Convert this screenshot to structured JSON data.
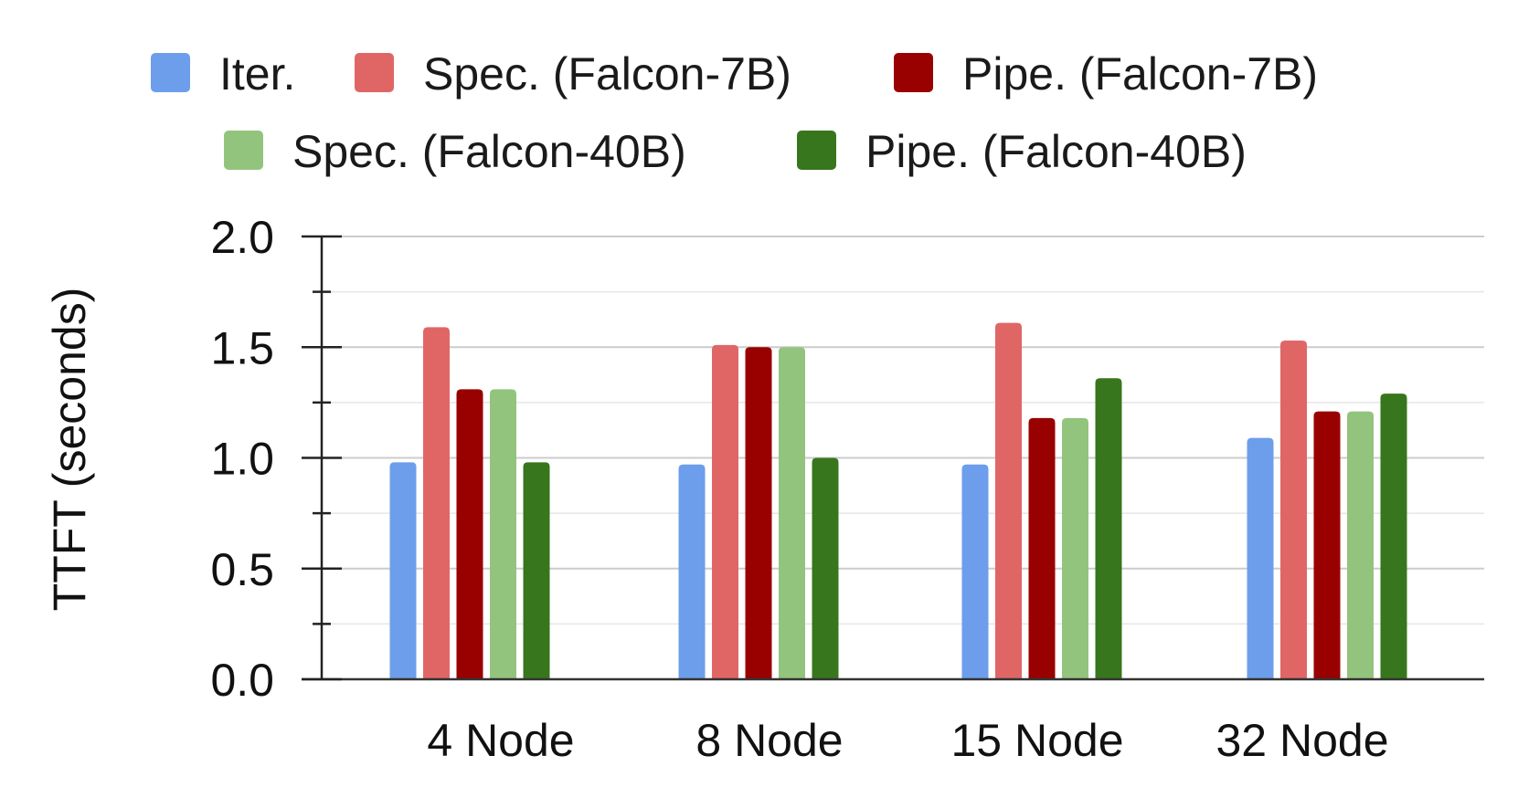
{
  "chart_data": {
    "type": "bar",
    "categories": [
      "4 Node",
      "8 Node",
      "15 Node",
      "32 Node"
    ],
    "series": [
      {
        "name": "Iter.",
        "color": "#6d9eeb",
        "values": [
          0.98,
          0.97,
          0.97,
          1.09
        ]
      },
      {
        "name": "Spec. (Falcon-7B)",
        "color": "#e06666",
        "values": [
          1.59,
          1.51,
          1.61,
          1.53
        ]
      },
      {
        "name": "Pipe. (Falcon-7B)",
        "color": "#990000",
        "values": [
          1.31,
          1.5,
          1.18,
          1.21
        ]
      },
      {
        "name": "Spec. (Falcon-40B)",
        "color": "#93c47d",
        "values": [
          1.31,
          1.5,
          1.18,
          1.21
        ]
      },
      {
        "name": "Pipe. (Falcon-40B)",
        "color": "#38761d",
        "values": [
          0.98,
          1.0,
          1.36,
          1.29
        ]
      }
    ],
    "ylabel": "TTFT (seconds)",
    "xlabel": "",
    "ylim": [
      0,
      2.0
    ],
    "yticks": [
      "0.0",
      "0.5",
      "1.0",
      "1.5",
      "2.0"
    ],
    "grid": true,
    "legend_position": "top"
  }
}
